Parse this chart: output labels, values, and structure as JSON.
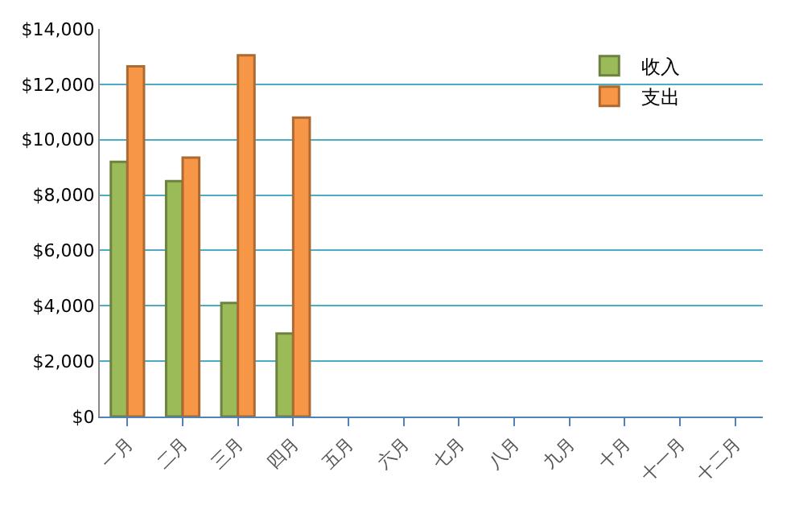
{
  "chart_data": {
    "type": "bar",
    "categories": [
      "一月",
      "二月",
      "三月",
      "四月",
      "五月",
      "六月",
      "七月",
      "八月",
      "九月",
      "十月",
      "十一月",
      "十二月"
    ],
    "series": [
      {
        "name": "收入",
        "color": "#9bbb59",
        "values": [
          9200,
          8500,
          4100,
          3000,
          null,
          null,
          null,
          null,
          null,
          null,
          null,
          null
        ]
      },
      {
        "name": "支出",
        "color": "#f79646",
        "values": [
          12650,
          9350,
          13050,
          10800,
          null,
          null,
          null,
          null,
          null,
          null,
          null,
          null
        ]
      }
    ],
    "ylim": [
      0,
      14000
    ],
    "yticks": [
      {
        "value": 0,
        "label": "$0"
      },
      {
        "value": 2000,
        "label": "$2,000"
      },
      {
        "value": 4000,
        "label": "$4,000"
      },
      {
        "value": 6000,
        "label": "$6,000"
      },
      {
        "value": 8000,
        "label": "$8,000"
      },
      {
        "value": 10000,
        "label": "$10,000"
      },
      {
        "value": 12000,
        "label": "$12,000"
      },
      {
        "value": 14000,
        "label": "$14,000"
      }
    ],
    "grid": "y",
    "legend": "top right"
  }
}
